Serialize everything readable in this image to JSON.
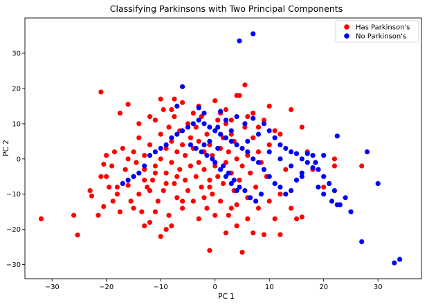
{
  "chart_data": {
    "type": "scatter",
    "title": "Classifying Parkinsons with Two Principal Components",
    "xlabel": "PC 1",
    "ylabel": "PC 2",
    "xlim": [
      -35,
      38
    ],
    "ylim": [
      -34,
      40
    ],
    "xticks": [
      -30,
      -20,
      -10,
      0,
      10,
      20,
      30
    ],
    "yticks": [
      -30,
      -20,
      -10,
      0,
      10,
      20,
      30
    ],
    "grid": false,
    "legend_position": "top-right",
    "series": [
      {
        "name": "Has Parkinson's",
        "color": "#ff0000",
        "points": [
          [
            -32,
            -17
          ],
          [
            -26,
            -16
          ],
          [
            -25.3,
            -21.6
          ],
          [
            -23,
            -9
          ],
          [
            -22.7,
            -10.5
          ],
          [
            -21.5,
            -16
          ],
          [
            -21,
            -5
          ],
          [
            -20.5,
            -13.5
          ],
          [
            -20.5,
            -1.5
          ],
          [
            -20,
            1
          ],
          [
            -19.5,
            -8
          ],
          [
            -19,
            -2
          ],
          [
            -18.8,
            -12
          ],
          [
            -18.5,
            2
          ],
          [
            -18,
            -10
          ],
          [
            -17.5,
            -15
          ],
          [
            -17.5,
            13
          ],
          [
            -17,
            3
          ],
          [
            -16.5,
            -3
          ],
          [
            -16,
            -7.5
          ],
          [
            -16,
            0
          ],
          [
            -15.5,
            -12
          ],
          [
            -15,
            -5
          ],
          [
            -15,
            2
          ],
          [
            -14.5,
            -1
          ],
          [
            -14,
            -10
          ],
          [
            -14,
            6
          ],
          [
            -13.5,
            -15
          ],
          [
            -13,
            -3
          ],
          [
            -13,
            1
          ],
          [
            -12.5,
            -8
          ],
          [
            -12,
            -18
          ],
          [
            -12,
            4
          ],
          [
            -11.5,
            -6
          ],
          [
            -11,
            -2
          ],
          [
            -11,
            11
          ],
          [
            -10.5,
            -12
          ],
          [
            -10,
            0
          ],
          [
            -10,
            7
          ],
          [
            -9.5,
            -9
          ],
          [
            -9.5,
            14
          ],
          [
            -9,
            -4
          ],
          [
            -9,
            3
          ],
          [
            -8.5,
            -16
          ],
          [
            -8.5,
            9
          ],
          [
            -8,
            -1
          ],
          [
            -8,
            5
          ],
          [
            -7.5,
            -7
          ],
          [
            -7.5,
            12
          ],
          [
            -7,
            -11
          ],
          [
            -7,
            2
          ],
          [
            -6.5,
            -3
          ],
          [
            -6.5,
            8
          ],
          [
            -6,
            -14
          ],
          [
            -6,
            4
          ],
          [
            -5.5,
            -6
          ],
          [
            -5.5,
            1
          ],
          [
            -5,
            -9
          ],
          [
            -5,
            10
          ],
          [
            -4.5,
            -2
          ],
          [
            -4.5,
            6
          ],
          [
            -4,
            -12
          ],
          [
            -4,
            3
          ],
          [
            -3.5,
            -5
          ],
          [
            -3.5,
            9
          ],
          [
            -3,
            -1
          ],
          [
            -3,
            5
          ],
          [
            -2.5,
            -8
          ],
          [
            -2.5,
            12
          ],
          [
            -2,
            -3
          ],
          [
            -2,
            2
          ],
          [
            -1.5,
            -14
          ],
          [
            -1.5,
            7
          ],
          [
            -1,
            -6
          ],
          [
            -1,
            4
          ],
          [
            -0.5,
            -10
          ],
          [
            -0.5,
            1
          ],
          [
            0,
            -2
          ],
          [
            0,
            8
          ],
          [
            0.5,
            -5
          ],
          [
            0.5,
            11
          ],
          [
            1,
            -12
          ],
          [
            1,
            3
          ],
          [
            1.5,
            -7
          ],
          [
            1.5,
            6
          ],
          [
            2,
            -1
          ],
          [
            2,
            10
          ],
          [
            2.5,
            -16
          ],
          [
            2.5,
            2
          ],
          [
            3,
            -4
          ],
          [
            3,
            7
          ],
          [
            3.5,
            -9
          ],
          [
            3.5,
            5
          ],
          [
            4,
            -19
          ],
          [
            4,
            0
          ],
          [
            4.5,
            -6
          ],
          [
            4.5,
            18
          ],
          [
            5,
            3
          ],
          [
            5,
            -2
          ],
          [
            5.5,
            9
          ],
          [
            6,
            -11
          ],
          [
            6,
            1
          ],
          [
            6.5,
            -4
          ],
          [
            7,
            6
          ],
          [
            7.5,
            -8
          ],
          [
            8,
            2
          ],
          [
            8.5,
            -1
          ],
          [
            9,
            11
          ],
          [
            9.5,
            -5
          ],
          [
            10,
            4
          ],
          [
            -21,
            19
          ],
          [
            -16,
            15.5
          ],
          [
            -7.5,
            17
          ],
          [
            0,
            16.5
          ],
          [
            4,
            18
          ],
          [
            5.5,
            21
          ],
          [
            -1,
            -26
          ],
          [
            5,
            -26.5
          ],
          [
            2,
            -21
          ],
          [
            9,
            -21.5
          ],
          [
            12,
            -21.5
          ],
          [
            15,
            -17
          ],
          [
            16,
            -16.5
          ],
          [
            11,
            -17
          ],
          [
            14,
            14
          ],
          [
            16,
            9
          ],
          [
            17,
            2
          ],
          [
            18,
            -3
          ],
          [
            20,
            -8
          ],
          [
            22,
            -2
          ],
          [
            22,
            0
          ],
          [
            27,
            -2
          ],
          [
            -10,
            -22
          ],
          [
            -13,
            -19
          ],
          [
            -8,
            -19
          ],
          [
            -3,
            -17
          ],
          [
            0,
            -16
          ],
          [
            3,
            -14
          ],
          [
            7,
            -21
          ],
          [
            -11,
            -15
          ],
          [
            -9,
            -20
          ],
          [
            -15,
            -14
          ],
          [
            -18,
            -8
          ],
          [
            -12,
            -9
          ],
          [
            -6,
            -12
          ],
          [
            -2,
            -11
          ],
          [
            4,
            -13
          ],
          [
            6,
            -17
          ],
          [
            8,
            -14
          ],
          [
            10,
            -12
          ],
          [
            12,
            -10
          ],
          [
            14,
            -14
          ],
          [
            -20,
            -5
          ],
          [
            -4,
            13
          ],
          [
            2,
            14
          ],
          [
            6,
            12
          ],
          [
            10,
            15
          ],
          [
            12,
            7
          ],
          [
            13,
            -3
          ],
          [
            -10,
            17
          ],
          [
            -14,
            10
          ],
          [
            -12,
            12
          ],
          [
            -8,
            14
          ],
          [
            -6,
            16
          ],
          [
            -3,
            15
          ],
          [
            1,
            13
          ],
          [
            3,
            11
          ],
          [
            7,
            13
          ],
          [
            8,
            9
          ],
          [
            11,
            8
          ],
          [
            -1,
            -8
          ],
          [
            -7,
            -5
          ],
          [
            -9,
            -7
          ],
          [
            -11,
            -4
          ],
          [
            -13,
            -6
          ]
        ]
      },
      {
        "name": "No Parkinson's",
        "color": "#0000ff",
        "points": [
          [
            7,
            35.5
          ],
          [
            4.5,
            33.5
          ],
          [
            -6,
            20.5
          ],
          [
            -7,
            15
          ],
          [
            -3,
            14.5
          ],
          [
            -2,
            13
          ],
          [
            1,
            13.5
          ],
          [
            4,
            12
          ],
          [
            5.5,
            10
          ],
          [
            7,
            11.5
          ],
          [
            9,
            10
          ],
          [
            10,
            8
          ],
          [
            11,
            6
          ],
          [
            12,
            4
          ],
          [
            13,
            3
          ],
          [
            14,
            2
          ],
          [
            15,
            1.5
          ],
          [
            16,
            0
          ],
          [
            17,
            -1
          ],
          [
            18,
            -2.5
          ],
          [
            19,
            -3
          ],
          [
            20,
            -5
          ],
          [
            21,
            -7
          ],
          [
            22,
            -9
          ],
          [
            21.5,
            -12
          ],
          [
            22.5,
            -13
          ],
          [
            24,
            -11
          ],
          [
            25,
            -15
          ],
          [
            27,
            -23.5
          ],
          [
            28,
            2
          ],
          [
            30,
            -7
          ],
          [
            33,
            -29.5
          ],
          [
            34,
            -28.5
          ],
          [
            22.5,
            6.5
          ],
          [
            20,
            1
          ],
          [
            18.5,
            -1
          ],
          [
            17,
            1.5
          ],
          [
            16,
            -4
          ],
          [
            15,
            -6
          ],
          [
            14,
            -9
          ],
          [
            13,
            -10
          ],
          [
            12,
            -8
          ],
          [
            11,
            -7
          ],
          [
            10,
            -5
          ],
          [
            9,
            -3
          ],
          [
            8,
            -1
          ],
          [
            7,
            0
          ],
          [
            6,
            2
          ],
          [
            5,
            3
          ],
          [
            4,
            4
          ],
          [
            3,
            5
          ],
          [
            2,
            6
          ],
          [
            1,
            7
          ],
          [
            0,
            8
          ],
          [
            -1,
            9
          ],
          [
            -2,
            10
          ],
          [
            -3,
            11
          ],
          [
            -4,
            10
          ],
          [
            -5,
            9
          ],
          [
            -6,
            8
          ],
          [
            -7,
            7
          ],
          [
            -8,
            6
          ],
          [
            -9,
            4
          ],
          [
            -10,
            3
          ],
          [
            -11,
            2
          ],
          [
            -12,
            1
          ],
          [
            -13,
            -2
          ],
          [
            -14,
            -4
          ],
          [
            -15,
            -5
          ],
          [
            -16,
            -6
          ],
          [
            -17,
            -7
          ],
          [
            0.5,
            3
          ],
          [
            1.5,
            -2
          ],
          [
            2.5,
            -4
          ],
          [
            3.5,
            -6
          ],
          [
            4.5,
            -8
          ],
          [
            5.5,
            -9
          ],
          [
            6.5,
            -11
          ],
          [
            7.5,
            -12
          ],
          [
            8.5,
            -10
          ],
          [
            -4.5,
            4
          ],
          [
            -3.5,
            3
          ],
          [
            -2.5,
            2
          ],
          [
            -1.5,
            1
          ],
          [
            -0.5,
            0
          ],
          [
            0,
            -1
          ],
          [
            1,
            -3
          ],
          [
            2,
            -5
          ],
          [
            3,
            -7
          ],
          [
            4,
            -9
          ],
          [
            -1,
            5
          ],
          [
            -2,
            4
          ],
          [
            0.5,
            9
          ],
          [
            2,
            11
          ],
          [
            3,
            8
          ],
          [
            6,
            5
          ],
          [
            8,
            7
          ],
          [
            10,
            2
          ],
          [
            12,
            0
          ],
          [
            14,
            -2
          ],
          [
            16,
            -5
          ],
          [
            19,
            -8
          ],
          [
            20,
            -10
          ],
          [
            23,
            -13
          ],
          [
            18,
            1
          ]
        ]
      }
    ]
  }
}
